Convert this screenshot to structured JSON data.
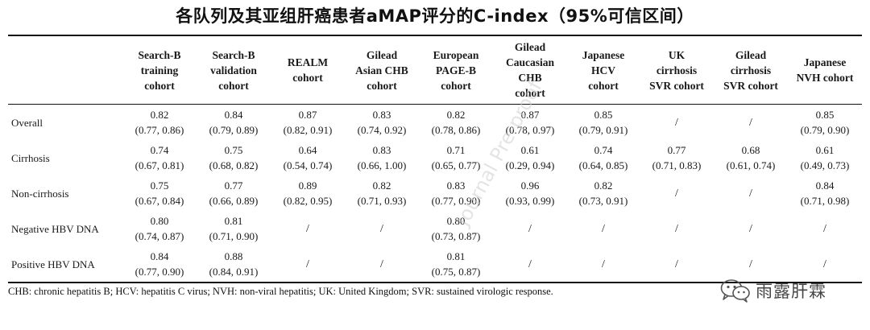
{
  "title": "各队列及其亚组肝癌患者aMAP评分的C-index（95%可信区间）",
  "table": {
    "columns": [
      {
        "lines": [
          "Search-B",
          "training",
          "cohort"
        ]
      },
      {
        "lines": [
          "Search-B",
          "validation",
          "cohort"
        ]
      },
      {
        "lines": [
          "REALM",
          "cohort"
        ]
      },
      {
        "lines": [
          "Gilead",
          "Asian CHB",
          "cohort"
        ]
      },
      {
        "lines": [
          "European",
          "PAGE-B",
          "cohort"
        ]
      },
      {
        "lines": [
          "Gilead",
          "Caucasian",
          "CHB",
          "cohort"
        ]
      },
      {
        "lines": [
          "Japanese",
          "HCV",
          "cohort"
        ]
      },
      {
        "lines": [
          "UK",
          "cirrhosis",
          "SVR cohort"
        ]
      },
      {
        "lines": [
          "Gilead",
          "cirrhosis",
          "SVR cohort"
        ]
      },
      {
        "lines": [
          "Japanese",
          "NVH cohort"
        ]
      }
    ],
    "rows": [
      {
        "label": "Overall",
        "cells": [
          [
            "0.82",
            "(0.77, 0.86)"
          ],
          [
            "0.84",
            "(0.79, 0.89)"
          ],
          [
            "0.87",
            "(0.82, 0.91)"
          ],
          [
            "0.83",
            "(0.74, 0.92)"
          ],
          [
            "0.82",
            "(0.78, 0.86)"
          ],
          [
            "0.87",
            "(0.78, 0.97)"
          ],
          [
            "0.85",
            "(0.79, 0.91)"
          ],
          [
            "/"
          ],
          [
            "/"
          ],
          [
            "0.85",
            "(0.79, 0.90)"
          ]
        ]
      },
      {
        "label": "Cirrhosis",
        "cells": [
          [
            "0.74",
            "(0.67, 0.81)"
          ],
          [
            "0.75",
            "(0.68, 0.82)"
          ],
          [
            "0.64",
            "(0.54, 0.74)"
          ],
          [
            "0.83",
            "(0.66, 1.00)"
          ],
          [
            "0.71",
            "(0.65, 0.77)"
          ],
          [
            "0.61",
            "(0.29, 0.94)"
          ],
          [
            "0.74",
            "(0.64, 0.85)"
          ],
          [
            "0.77",
            "(0.71, 0.83)"
          ],
          [
            "0.68",
            "(0.61, 0.74)"
          ],
          [
            "0.61",
            "(0.49, 0.73)"
          ]
        ]
      },
      {
        "label": "Non-cirrhosis",
        "cells": [
          [
            "0.75",
            "(0.67, 0.84)"
          ],
          [
            "0.77",
            "(0.66, 0.89)"
          ],
          [
            "0.89",
            "(0.82, 0.95)"
          ],
          [
            "0.82",
            "(0.71, 0.93)"
          ],
          [
            "0.83",
            "(0.77, 0.90)"
          ],
          [
            "0.96",
            "(0.93, 0.99)"
          ],
          [
            "0.82",
            "(0.73, 0.91)"
          ],
          [
            "/"
          ],
          [
            "/"
          ],
          [
            "0.84",
            "(0.71, 0.98)"
          ]
        ]
      },
      {
        "label": "Negative HBV DNA",
        "cells": [
          [
            "0.80",
            "(0.74, 0.87)"
          ],
          [
            "0.81",
            "(0.71, 0.90)"
          ],
          [
            "/"
          ],
          [
            "/"
          ],
          [
            "0.80",
            "(0.73, 0.87)"
          ],
          [
            "/"
          ],
          [
            "/"
          ],
          [
            "/"
          ],
          [
            "/"
          ],
          [
            "/"
          ]
        ]
      },
      {
        "label": "Positive HBV DNA",
        "cells": [
          [
            "0.84",
            "(0.77, 0.90)"
          ],
          [
            "0.88",
            "(0.84, 0.91)"
          ],
          [
            "/"
          ],
          [
            "/"
          ],
          [
            "0.81",
            "(0.75, 0.87)"
          ],
          [
            "/"
          ],
          [
            "/"
          ],
          [
            "/"
          ],
          [
            "/"
          ],
          [
            "/"
          ]
        ]
      }
    ]
  },
  "footnote": "CHB: chronic hepatitis B; HCV: hepatitis C virus; NVH: non-viral hepatitis; UK: United Kingdom; SVR: sustained virologic response.",
  "watermark": "Journal Pre-proof",
  "brand": {
    "name": "雨露肝霖",
    "icon": "wechat-icon"
  }
}
